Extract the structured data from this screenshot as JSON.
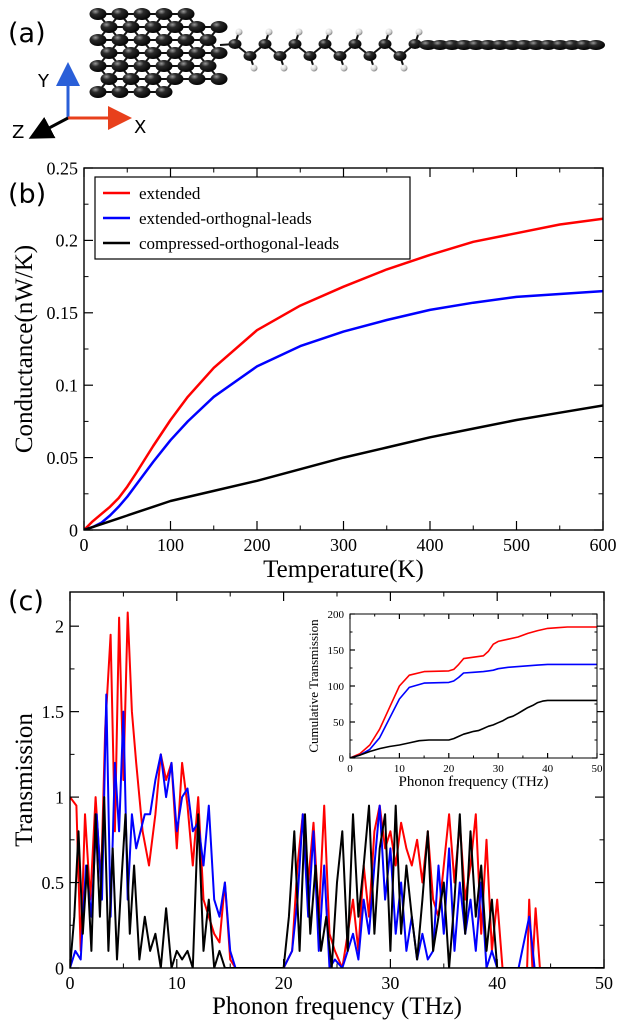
{
  "panels": {
    "a": "(a)",
    "b": "(b)",
    "c": "(c)"
  },
  "molecule_axes": {
    "y": "Y",
    "z": "Z",
    "x": "X"
  },
  "colors": {
    "extended": "#ff0000",
    "extended_orthogonal_leads": "#0000ff",
    "compressed_orthogonal_leads": "#000000",
    "axis_x_arrow": "#e8401c",
    "axis_y_arrow": "#2a5fd8",
    "axis_z_arrow": "#000000"
  },
  "chart_data": [
    {
      "type": "line",
      "panel": "b",
      "xlabel": "Temperature(K)",
      "ylabel": "Conductance(nW/K)",
      "xlim": [
        0,
        600
      ],
      "ylim": [
        0,
        0.25
      ],
      "x_ticks": [
        "0",
        "100",
        "200",
        "300",
        "400",
        "500",
        "600"
      ],
      "y_ticks": [
        "0",
        "0.05",
        "0.1",
        "0.15",
        "0.2",
        "0.25"
      ],
      "legend_position": "top-left",
      "legend": [
        "extended",
        "extended-orthognal-leads",
        "compressed-orthogonal-leads"
      ],
      "series": [
        {
          "name": "extended",
          "x": [
            0,
            10,
            20,
            30,
            40,
            50,
            60,
            80,
            100,
            120,
            150,
            200,
            250,
            300,
            350,
            400,
            450,
            500,
            550,
            600
          ],
          "values": [
            0,
            0.006,
            0.011,
            0.016,
            0.022,
            0.03,
            0.039,
            0.058,
            0.076,
            0.092,
            0.112,
            0.138,
            0.155,
            0.168,
            0.18,
            0.19,
            0.199,
            0.205,
            0.211,
            0.215
          ]
        },
        {
          "name": "extended-orthognal-leads",
          "x": [
            0,
            10,
            20,
            30,
            40,
            50,
            60,
            80,
            100,
            120,
            150,
            200,
            250,
            300,
            350,
            400,
            450,
            500,
            550,
            600
          ],
          "values": [
            0,
            0.002,
            0.005,
            0.01,
            0.016,
            0.023,
            0.031,
            0.047,
            0.062,
            0.075,
            0.092,
            0.113,
            0.127,
            0.137,
            0.145,
            0.152,
            0.157,
            0.161,
            0.163,
            0.165
          ]
        },
        {
          "name": "compressed-orthogonal-leads",
          "x": [
            0,
            10,
            20,
            30,
            40,
            50,
            60,
            80,
            100,
            150,
            200,
            250,
            300,
            350,
            400,
            450,
            500,
            550,
            600
          ],
          "values": [
            0,
            0.002,
            0.004,
            0.006,
            0.008,
            0.01,
            0.012,
            0.016,
            0.02,
            0.027,
            0.034,
            0.042,
            0.05,
            0.057,
            0.064,
            0.07,
            0.076,
            0.081,
            0.086
          ]
        }
      ]
    },
    {
      "type": "line",
      "panel": "c",
      "xlabel": "Phonon frequency (THz)",
      "ylabel": "Transmission",
      "xlim": [
        0,
        50
      ],
      "ylim": [
        0,
        2.2
      ],
      "x_ticks": [
        "0",
        "10",
        "20",
        "30",
        "40",
        "50"
      ],
      "y_ticks": [
        "0",
        "0.5",
        "1",
        "1.5",
        "2"
      ],
      "series": [
        {
          "name": "extended",
          "x": [
            0,
            0.6,
            1.0,
            1.4,
            1.9,
            2.4,
            2.9,
            3.3,
            3.8,
            4.2,
            4.6,
            5.0,
            5.4,
            5.8,
            6.2,
            6.8,
            7.4,
            8.0,
            8.5,
            9.0,
            9.5,
            10.0,
            10.5,
            11.0,
            11.5,
            12.0,
            12.5,
            13.0,
            13.5,
            14.0,
            14.5,
            15.0,
            15.5,
            16.0,
            17.0,
            18.0,
            19.0,
            20.0,
            20.8,
            21.3,
            21.8,
            22.3,
            22.8,
            23.3,
            23.8,
            24.3,
            24.8,
            25.5,
            26.0,
            26.5,
            27.0,
            27.5,
            28.0,
            28.5,
            29.0,
            29.5,
            30.0,
            30.5,
            31.0,
            31.5,
            32.0,
            32.5,
            33.0,
            33.5,
            34.0,
            34.5,
            35.0,
            35.5,
            36.0,
            36.5,
            37.0,
            37.5,
            38.0,
            38.5,
            39.0,
            39.5,
            40.0,
            40.5,
            41.0,
            42.0,
            42.8,
            43.0,
            43.3,
            43.6,
            44.0,
            50.0
          ],
          "values": [
            1.0,
            0.95,
            0.1,
            0.9,
            0.4,
            1.0,
            0.5,
            1.4,
            1.95,
            0.8,
            2.05,
            1.1,
            2.08,
            1.5,
            1.2,
            0.8,
            0.6,
            0.9,
            1.25,
            1.1,
            1.2,
            0.7,
            1.2,
            0.95,
            0.6,
            1.0,
            0.4,
            0.3,
            0.2,
            0.15,
            0.5,
            0.05,
            0.0,
            0.0,
            0.0,
            0.0,
            0.0,
            0.0,
            0.1,
            0.6,
            0.9,
            0.5,
            0.85,
            0.3,
            0.95,
            0.2,
            0.1,
            0.0,
            0.2,
            0.4,
            0.1,
            0.6,
            0.3,
            0.8,
            0.95,
            0.7,
            0.8,
            0.6,
            0.85,
            0.7,
            0.6,
            0.75,
            0.5,
            0.8,
            0.4,
            0.3,
            0.6,
            0.9,
            0.5,
            0.85,
            0.4,
            0.6,
            0.9,
            0.2,
            0.75,
            0.1,
            0.4,
            0.0,
            0.0,
            0.0,
            0.0,
            0.4,
            0.0,
            0.35,
            0.0,
            0.0
          ]
        },
        {
          "name": "extended-orthognal-leads",
          "x": [
            0,
            0.5,
            1.0,
            1.5,
            2.0,
            2.5,
            3.0,
            3.4,
            3.8,
            4.2,
            4.6,
            5.0,
            5.4,
            5.8,
            6.2,
            6.6,
            7.0,
            7.5,
            8.0,
            8.5,
            9.0,
            9.5,
            10.0,
            10.5,
            11.0,
            11.5,
            12.0,
            12.5,
            13.0,
            13.5,
            14.0,
            14.5,
            15.0,
            15.5,
            16.0,
            17.0,
            18.0,
            19.0,
            20.0,
            20.8,
            21.3,
            21.8,
            22.3,
            22.8,
            23.3,
            23.8,
            24.3,
            24.8,
            25.5,
            26.0,
            26.5,
            27.0,
            27.5,
            28.0,
            28.5,
            29.0,
            29.5,
            30.0,
            30.5,
            31.0,
            31.5,
            32.0,
            32.5,
            33.0,
            33.5,
            34.0,
            34.5,
            35.0,
            35.5,
            36.0,
            36.5,
            37.0,
            37.5,
            38.0,
            38.5,
            39.0,
            39.5,
            40.0,
            40.5,
            41.0,
            42.0,
            43.0,
            43.5,
            44.0,
            50.0
          ],
          "values": [
            0.0,
            0.1,
            0.05,
            0.6,
            0.3,
            0.9,
            0.4,
            1.6,
            0.3,
            1.2,
            0.8,
            1.5,
            0.4,
            0.9,
            0.7,
            0.8,
            0.9,
            0.9,
            1.1,
            1.25,
            1.0,
            1.2,
            0.8,
            1.0,
            1.05,
            0.8,
            0.85,
            0.6,
            0.95,
            0.4,
            0.3,
            0.5,
            0.1,
            0.0,
            0.0,
            0.0,
            0.0,
            0.0,
            0.0,
            0.1,
            0.4,
            0.9,
            0.3,
            0.8,
            0.1,
            0.6,
            0.0,
            0.05,
            0.0,
            0.1,
            0.2,
            0.05,
            0.4,
            0.2,
            0.6,
            0.95,
            0.4,
            0.7,
            0.2,
            0.5,
            0.1,
            0.3,
            0.05,
            0.2,
            0.05,
            0.1,
            0.6,
            0.2,
            0.7,
            0.1,
            0.5,
            0.2,
            0.4,
            0.1,
            0.5,
            0.0,
            0.1,
            0.0,
            0.0,
            0.0,
            0.0,
            0.3,
            0.0,
            0.0,
            0.0
          ]
        },
        {
          "name": "compressed-orthogonal-leads",
          "x": [
            0,
            0.4,
            0.8,
            1.2,
            1.6,
            2.0,
            2.4,
            2.8,
            3.2,
            3.6,
            4.0,
            4.4,
            4.8,
            5.2,
            5.6,
            6.0,
            6.5,
            7.0,
            7.5,
            8.0,
            8.5,
            9.0,
            9.5,
            10.0,
            10.5,
            11.0,
            11.5,
            12.0,
            12.5,
            13.0,
            13.5,
            14.0,
            14.5,
            15.0,
            16.0,
            18.0,
            20.0,
            20.5,
            21.0,
            21.5,
            22.0,
            22.5,
            23.0,
            23.5,
            24.0,
            24.5,
            25.0,
            25.5,
            26.0,
            26.5,
            27.0,
            27.5,
            28.0,
            28.5,
            29.0,
            29.5,
            30.0,
            30.5,
            31.0,
            31.5,
            32.0,
            32.5,
            33.0,
            33.5,
            34.0,
            34.5,
            35.0,
            35.5,
            36.0,
            36.5,
            37.0,
            37.5,
            38.0,
            38.5,
            39.0,
            39.5,
            40.0,
            41.0,
            42.0,
            50.0
          ],
          "values": [
            0.0,
            0.3,
            0.8,
            0.2,
            0.6,
            0.1,
            0.9,
            0.3,
            1.0,
            0.1,
            0.7,
            0.05,
            0.5,
            0.9,
            0.2,
            0.6,
            0.05,
            0.3,
            0.1,
            0.2,
            0.0,
            0.35,
            0.0,
            0.1,
            0.05,
            0.1,
            0.0,
            0.9,
            0.1,
            0.4,
            0.0,
            0.1,
            0.0,
            0.0,
            0.0,
            0.0,
            0.0,
            0.3,
            0.8,
            0.1,
            0.9,
            0.2,
            0.6,
            0.1,
            0.3,
            0.0,
            0.5,
            0.8,
            0.1,
            0.9,
            0.3,
            0.6,
            0.95,
            0.2,
            0.7,
            0.9,
            0.1,
            0.95,
            0.2,
            0.6,
            0.3,
            0.05,
            0.4,
            0.8,
            0.1,
            0.3,
            0.5,
            0.0,
            0.4,
            0.9,
            0.2,
            0.8,
            0.3,
            0.6,
            0.1,
            0.4,
            0.0,
            0.0,
            0.0,
            0.0
          ]
        }
      ]
    },
    {
      "type": "line",
      "panel": "c-inset",
      "xlabel": "Phonon frequency (THz)",
      "ylabel": "Cumulative Transmission",
      "xlim": [
        0,
        50
      ],
      "ylim": [
        0,
        200
      ],
      "x_ticks": [
        "0",
        "10",
        "20",
        "30",
        "40",
        "50"
      ],
      "y_ticks": [
        "0",
        "50",
        "100",
        "150",
        "200"
      ],
      "series": [
        {
          "name": "extended",
          "x": [
            0,
            2,
            4,
            6,
            8,
            10,
            12,
            15,
            20,
            21,
            22,
            23,
            25,
            27,
            28,
            29,
            30,
            32,
            34,
            36,
            38,
            40,
            42,
            44,
            50
          ],
          "values": [
            0,
            6,
            18,
            40,
            70,
            100,
            115,
            120,
            121,
            123,
            130,
            138,
            140,
            142,
            148,
            158,
            162,
            165,
            168,
            173,
            177,
            180,
            181,
            182,
            182
          ]
        },
        {
          "name": "extended-orthognal-leads",
          "x": [
            0,
            2,
            4,
            6,
            8,
            10,
            12,
            15,
            20,
            21,
            22,
            23,
            25,
            27,
            28,
            29,
            30,
            32,
            34,
            36,
            38,
            40,
            44,
            50
          ],
          "values": [
            0,
            4,
            12,
            28,
            55,
            82,
            98,
            104,
            105,
            107,
            112,
            118,
            119,
            120,
            121,
            122,
            124,
            126,
            127,
            128,
            129,
            130,
            130,
            130
          ]
        },
        {
          "name": "compressed-orthogonal-leads",
          "x": [
            0,
            2,
            4,
            6,
            8,
            10,
            12,
            14,
            16,
            20,
            21,
            22,
            23,
            24,
            25,
            26,
            27,
            28,
            29,
            30,
            31,
            32,
            33,
            34,
            35,
            36,
            37,
            38,
            39,
            40,
            42,
            50
          ],
          "values": [
            0,
            4,
            9,
            13,
            16,
            18,
            21,
            24,
            25,
            25,
            27,
            30,
            33,
            35,
            37,
            38,
            41,
            44,
            46,
            49,
            52,
            56,
            58,
            62,
            66,
            70,
            73,
            77,
            79,
            80,
            80,
            80
          ]
        }
      ]
    }
  ]
}
